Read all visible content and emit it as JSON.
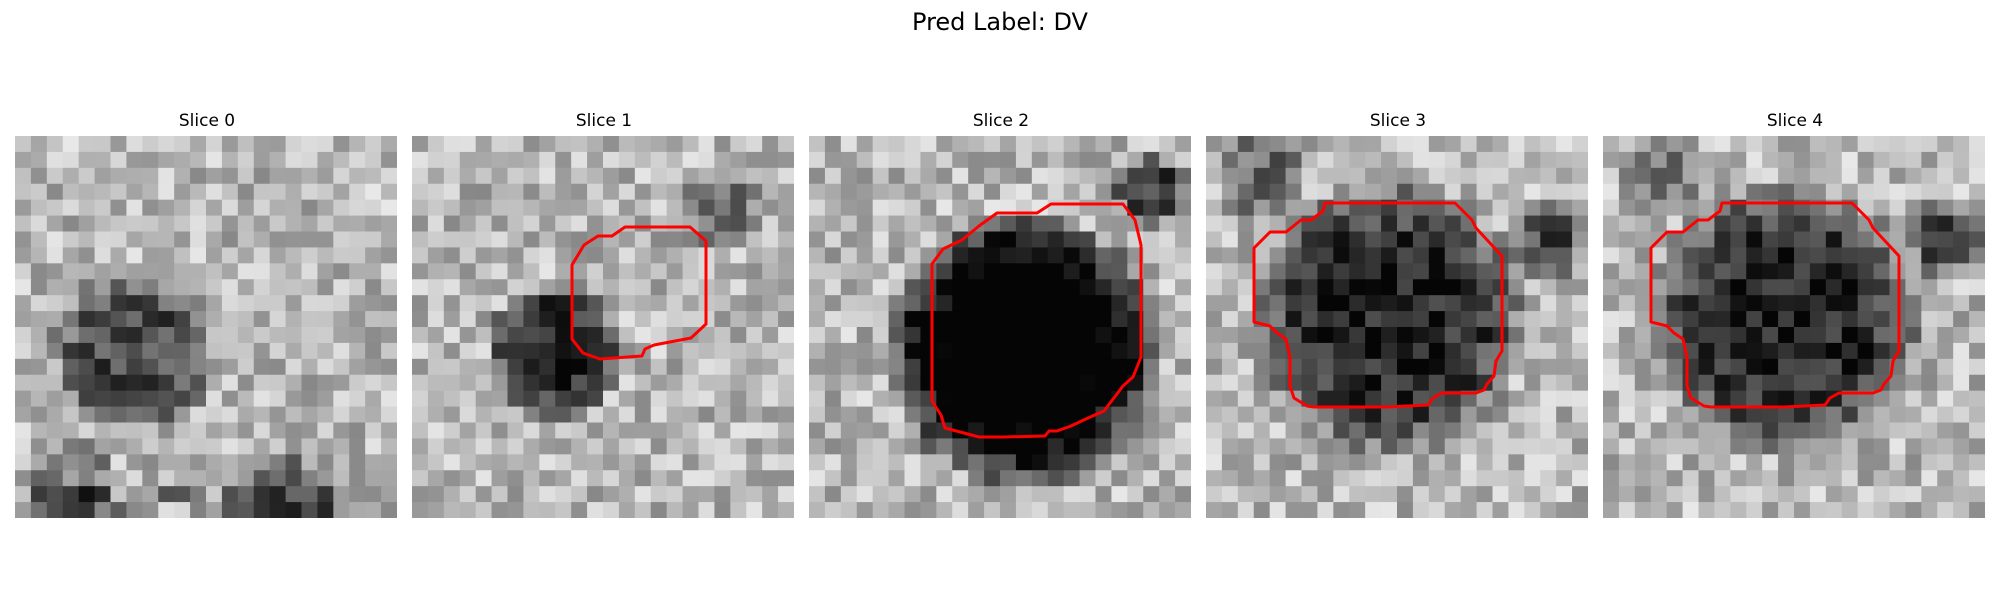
{
  "figure": {
    "title": "Pred Label: DV"
  },
  "slices": [
    {
      "title": "Slice 0",
      "has_contour": false
    },
    {
      "title": "Slice 1",
      "has_contour": true
    },
    {
      "title": "Slice 2",
      "has_contour": true
    },
    {
      "title": "Slice 3",
      "has_contour": true
    },
    {
      "title": "Slice 4",
      "has_contour": true
    }
  ],
  "colors": {
    "contour": "#ff0000",
    "background": "#ffffff"
  },
  "colormap": "gray"
}
